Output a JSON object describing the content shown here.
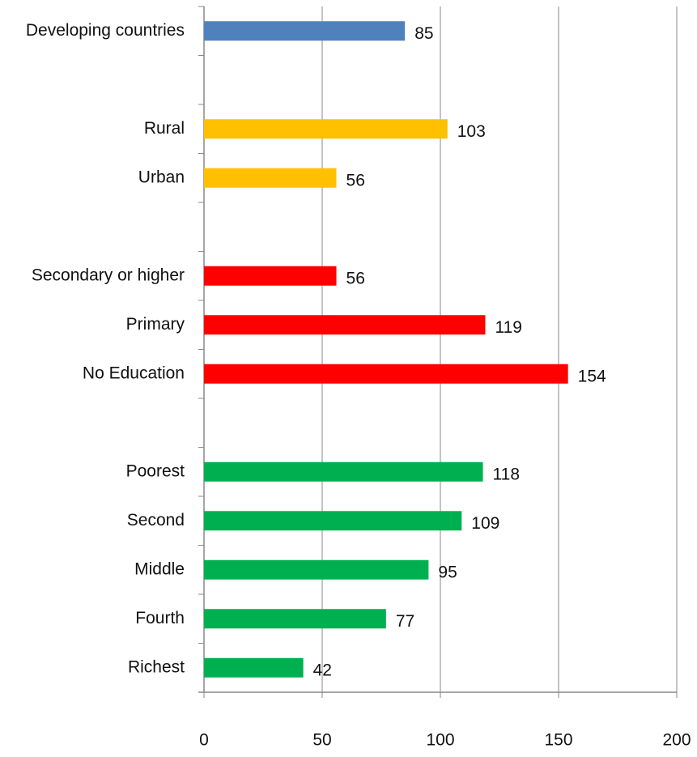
{
  "chart_data": {
    "type": "bar",
    "orientation": "horizontal",
    "categories": [
      "Developing countries",
      null,
      "Rural",
      "Urban",
      null,
      "Secondary or higher",
      "Primary",
      "No Education",
      null,
      "Poorest",
      "Second",
      "Middle",
      "Fourth",
      "Richest"
    ],
    "values": [
      85,
      null,
      103,
      56,
      null,
      56,
      119,
      154,
      null,
      118,
      109,
      95,
      77,
      42
    ],
    "colors": [
      "#4f81bd",
      null,
      "#ffc000",
      "#ffc000",
      null,
      "#ff0000",
      "#ff0000",
      "#ff0000",
      null,
      "#00b050",
      "#00b050",
      "#00b050",
      "#00b050",
      "#00b050"
    ],
    "xlim": [
      0,
      200
    ],
    "xticks": [
      0,
      50,
      100,
      150,
      200
    ],
    "grid": true
  }
}
